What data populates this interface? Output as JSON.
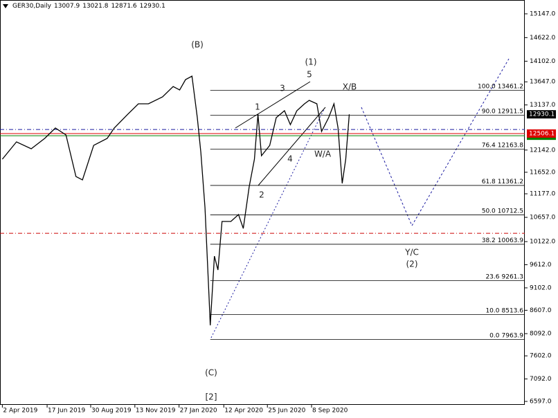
{
  "chart_data": {
    "type": "line",
    "title": "GER30,Daily",
    "ohlc": [
      13007.9,
      13021.8,
      12871.6,
      12930.1
    ],
    "color": "#000000",
    "x": [
      "2019-04-02",
      "2019-04-26",
      "2019-05-21",
      "2019-06-13",
      "2019-07-01",
      "2019-07-19",
      "2019-08-05",
      "2019-08-16",
      "2019-09-04",
      "2019-09-27",
      "2019-10-09",
      "2019-11-01",
      "2019-11-19",
      "2019-12-06",
      "2019-12-30",
      "2020-01-17",
      "2020-01-28",
      "2020-02-07",
      "2020-02-18",
      "2020-02-27",
      "2020-03-04",
      "2020-03-11",
      "2020-03-18",
      "2020-03-20",
      "2020-03-27",
      "2020-04-02",
      "2020-04-09",
      "2020-04-24",
      "2020-05-07",
      "2020-05-15",
      "2020-05-25",
      "2020-06-03",
      "2020-06-09",
      "2020-06-15",
      "2020-06-29",
      "2020-07-10",
      "2020-07-24",
      "2020-08-03",
      "2020-08-14",
      "2020-08-27",
      "2020-09-04",
      "2020-09-17",
      "2020-09-25",
      "2020-10-07",
      "2020-10-16",
      "2020-10-23",
      "2020-10-30",
      "2020-11-05",
      "2020-11-11"
    ],
    "values": [
      11940,
      12322,
      12170,
      12400,
      12627,
      12475,
      11558,
      11482,
      12245,
      12398,
      12627,
      12932,
      13162,
      13162,
      13314,
      13543,
      13467,
      13696,
      13772,
      12856,
      12093,
      10871,
      8886,
      8275,
      9802,
      9497,
      10566,
      10566,
      10719,
      10413,
      11329,
      11940,
      12932,
      12017,
      12245,
      12856,
      13009,
      12703,
      13009,
      13162,
      13238,
      13162,
      12551,
      12856,
      13162,
      12627,
      11406,
      11940,
      12930.1
    ],
    "xlim": [
      "2019-03-29",
      "2021-09-05"
    ],
    "xticks": [
      {
        "value": "2019-04-02",
        "label": "2 Apr 2019"
      },
      {
        "value": "2019-06-17",
        "label": "17 Jun 2019"
      },
      {
        "value": "2019-08-30",
        "label": "30 Aug 2019"
      },
      {
        "value": "2019-11-13",
        "label": "13 Nov 2019"
      },
      {
        "value": "2020-01-27",
        "label": "27 Jan 2020"
      },
      {
        "value": "2020-04-12",
        "label": "12 Apr 2020"
      },
      {
        "value": "2020-06-25",
        "label": "25 Jun 2020"
      },
      {
        "value": "2020-09-08",
        "label": "8 Sep 2020"
      }
    ],
    "ylim": [
      6521,
      15452
    ],
    "yticks": [
      {
        "value": 15147,
        "label": "15147.0"
      },
      {
        "value": 14622,
        "label": "14622.0"
      },
      {
        "value": 14102,
        "label": "14102.0"
      },
      {
        "value": 13647,
        "label": "13647.0"
      },
      {
        "value": 13137,
        "label": "13137.0"
      },
      {
        "value": 12142,
        "label": "12142.0"
      },
      {
        "value": 11652,
        "label": "11652.0"
      },
      {
        "value": 11177,
        "label": "11177.0"
      },
      {
        "value": 10657,
        "label": "10657.0"
      },
      {
        "value": 10122,
        "label": "10122.0"
      },
      {
        "value": 9612,
        "label": "9612.0"
      },
      {
        "value": 9102,
        "label": "9102.0"
      },
      {
        "value": 8607,
        "label": "8607.0"
      },
      {
        "value": 8092,
        "label": "8092.0"
      },
      {
        "value": 7602,
        "label": "7602.0"
      },
      {
        "value": 7092,
        "label": "7092.0"
      },
      {
        "value": 6597,
        "label": "6597.0"
      }
    ],
    "fib_levels": [
      {
        "ratio": "100.0",
        "value": 13461.2
      },
      {
        "ratio": "90.0",
        "value": 12911.5
      },
      {
        "ratio": "76.4",
        "value": 12163.8
      },
      {
        "ratio": "61.8",
        "value": 11361.2
      },
      {
        "ratio": "50.0",
        "value": 10712.5
      },
      {
        "ratio": "38.2",
        "value": 10063.9
      },
      {
        "ratio": "23.6",
        "value": 9261.3
      },
      {
        "ratio": "10.0",
        "value": 8513.6
      },
      {
        "ratio": "0.0",
        "value": 7963.9
      }
    ],
    "price_tags": [
      {
        "value": 12457.4,
        "color": "#008000"
      },
      {
        "value": 12506.1,
        "color": "#dd0000"
      },
      {
        "value": 12930.1,
        "color": "#000000"
      }
    ],
    "dash_lines": [
      {
        "value": 12596,
        "color": "#1a1aa0"
      },
      {
        "value": 10306,
        "color": "#cc0000"
      }
    ],
    "annotations": [
      "(B)",
      "(1)",
      "5",
      "3",
      "1",
      "X/B",
      "W/A",
      "4",
      "2",
      "Y/C",
      "(2)",
      "(C)",
      "[2]"
    ]
  }
}
